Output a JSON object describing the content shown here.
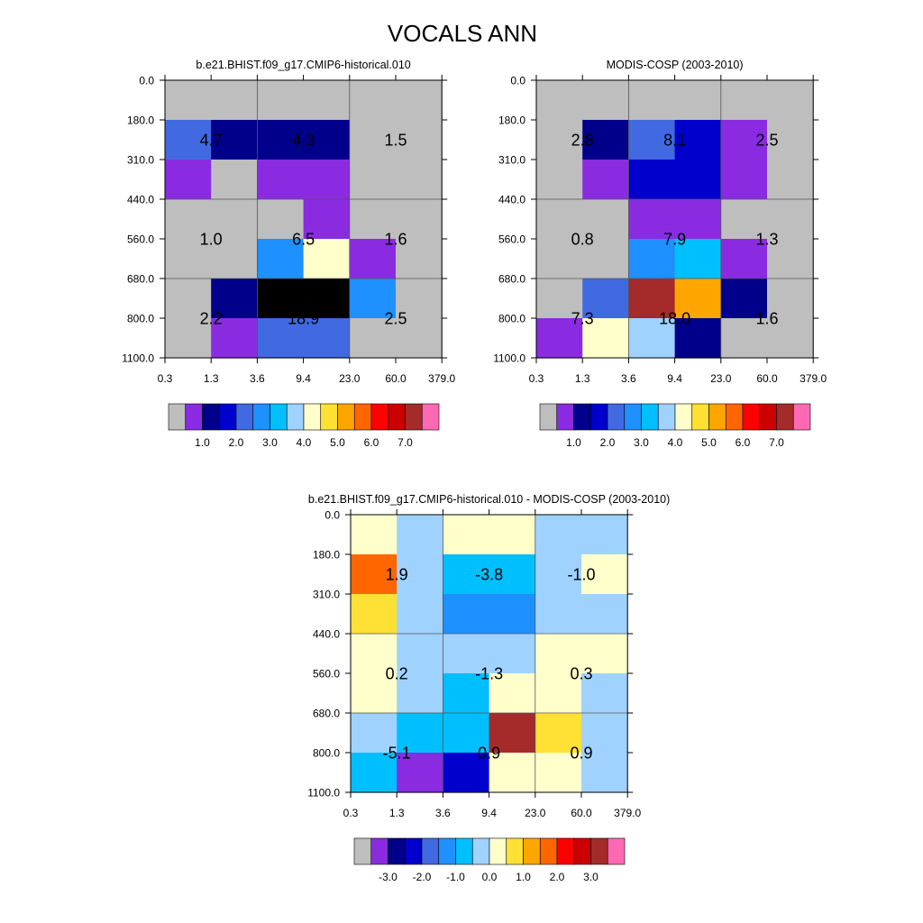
{
  "figure_title": "VOCALS ANN",
  "chart_data": [
    {
      "type": "heatmap",
      "id": "model",
      "title": "b.e21.BHIST.f09_g17.CMIP6-historical.010",
      "x_ticks": [
        "0.3",
        "1.3",
        "3.6",
        "9.4",
        "23.0",
        "60.0",
        "379.0"
      ],
      "y_ticks": [
        "0.0",
        "180.0",
        "310.0",
        "440.0",
        "560.0",
        "680.0",
        "800.0",
        "1100.0"
      ],
      "cells": [
        [
          0,
          0,
          0,
          0,
          0,
          0
        ],
        [
          4,
          2,
          2,
          2,
          0,
          0
        ],
        [
          1,
          0,
          1,
          1,
          0,
          0
        ],
        [
          0,
          0,
          0,
          1,
          0,
          0
        ],
        [
          0,
          0,
          5,
          8,
          1,
          0
        ],
        [
          0,
          2,
          17,
          18,
          5,
          0
        ],
        [
          0,
          1,
          4,
          4,
          0,
          0
        ]
      ],
      "block_labels": [
        {
          "row": 0,
          "col": 0,
          "text": "4.7"
        },
        {
          "row": 0,
          "col": 1,
          "text": "4.3"
        },
        {
          "row": 0,
          "col": 2,
          "text": "1.5"
        },
        {
          "row": 1,
          "col": 0,
          "text": "1.0"
        },
        {
          "row": 1,
          "col": 1,
          "text": "6.5"
        },
        {
          "row": 1,
          "col": 2,
          "text": "1.6"
        },
        {
          "row": 2,
          "col": 0,
          "text": "2.2"
        },
        {
          "row": 2,
          "col": 1,
          "text": "18.9"
        },
        {
          "row": 2,
          "col": 2,
          "text": "2.5"
        }
      ],
      "colorbar": {
        "colors": [
          "#bebebe",
          "#8a2be2",
          "#00008b",
          "#0000cd",
          "#4169e1",
          "#1e90ff",
          "#00bfff",
          "#a0d2ff",
          "#ffffcc",
          "#ffe135",
          "#ffa500",
          "#ff6600",
          "#ff0000",
          "#cc0000",
          "#a52a2a",
          "#ff69b4"
        ],
        "labels": [
          "1.0",
          "2.0",
          "3.0",
          "4.0",
          "5.0",
          "6.0",
          "7.0"
        ]
      }
    },
    {
      "type": "heatmap",
      "id": "obs",
      "title": "MODIS-COSP (2003-2010)",
      "x_ticks": [
        "0.3",
        "1.3",
        "3.6",
        "9.4",
        "23.0",
        "60.0",
        "379.0"
      ],
      "y_ticks": [
        "0.0",
        "180.0",
        "310.0",
        "440.0",
        "560.0",
        "680.0",
        "800.0",
        "1100.0"
      ],
      "cells": [
        [
          0,
          0,
          0,
          0,
          0,
          0
        ],
        [
          0,
          2,
          4,
          3,
          1,
          0
        ],
        [
          0,
          1,
          3,
          3,
          1,
          0
        ],
        [
          0,
          0,
          1,
          1,
          0,
          0
        ],
        [
          0,
          0,
          5,
          6,
          1,
          0
        ],
        [
          0,
          4,
          14,
          10,
          2,
          0
        ],
        [
          1,
          8,
          7,
          2,
          0,
          0
        ]
      ],
      "block_labels": [
        {
          "row": 0,
          "col": 0,
          "text": "2.8"
        },
        {
          "row": 0,
          "col": 1,
          "text": "8.1"
        },
        {
          "row": 0,
          "col": 2,
          "text": "2.5"
        },
        {
          "row": 1,
          "col": 0,
          "text": "0.8"
        },
        {
          "row": 1,
          "col": 1,
          "text": "7.9"
        },
        {
          "row": 1,
          "col": 2,
          "text": "1.3"
        },
        {
          "row": 2,
          "col": 0,
          "text": "7.3"
        },
        {
          "row": 2,
          "col": 1,
          "text": "18.0"
        },
        {
          "row": 2,
          "col": 2,
          "text": "1.6"
        }
      ],
      "colorbar": {
        "colors": [
          "#bebebe",
          "#8a2be2",
          "#00008b",
          "#0000cd",
          "#4169e1",
          "#1e90ff",
          "#00bfff",
          "#a0d2ff",
          "#ffffcc",
          "#ffe135",
          "#ffa500",
          "#ff6600",
          "#ff0000",
          "#cc0000",
          "#a52a2a",
          "#ff69b4"
        ],
        "labels": [
          "1.0",
          "2.0",
          "3.0",
          "4.0",
          "5.0",
          "6.0",
          "7.0"
        ]
      }
    },
    {
      "type": "heatmap",
      "id": "diff",
      "title": "b.e21.BHIST.f09_g17.CMIP6-historical.010 - MODIS-COSP (2003-2010)",
      "x_ticks": [
        "0.3",
        "1.3",
        "3.6",
        "9.4",
        "23.0",
        "60.0",
        "379.0"
      ],
      "y_ticks": [
        "0.0",
        "180.0",
        "310.0",
        "440.0",
        "560.0",
        "680.0",
        "800.0",
        "1100.0"
      ],
      "cells": [
        [
          8,
          7,
          8,
          8,
          7,
          7
        ],
        [
          11,
          7,
          6,
          6,
          7,
          8
        ],
        [
          9,
          7,
          5,
          5,
          7,
          7
        ],
        [
          8,
          7,
          7,
          7,
          8,
          8
        ],
        [
          8,
          7,
          6,
          8,
          8,
          7
        ],
        [
          7,
          6,
          6,
          14,
          9,
          7
        ],
        [
          6,
          1,
          3,
          8,
          8,
          7
        ]
      ],
      "block_labels": [
        {
          "row": 0,
          "col": 0,
          "text": "1.9"
        },
        {
          "row": 0,
          "col": 1,
          "text": "-3.8"
        },
        {
          "row": 0,
          "col": 2,
          "text": "-1.0"
        },
        {
          "row": 1,
          "col": 0,
          "text": "0.2"
        },
        {
          "row": 1,
          "col": 1,
          "text": "-1.3"
        },
        {
          "row": 1,
          "col": 2,
          "text": "0.3"
        },
        {
          "row": 2,
          "col": 0,
          "text": "-5.1"
        },
        {
          "row": 2,
          "col": 1,
          "text": "0.9"
        },
        {
          "row": 2,
          "col": 2,
          "text": "0.9"
        }
      ],
      "colorbar": {
        "colors": [
          "#bebebe",
          "#8a2be2",
          "#00008b",
          "#0000cd",
          "#4169e1",
          "#1e90ff",
          "#00bfff",
          "#a0d2ff",
          "#ffffcc",
          "#ffe135",
          "#ffa500",
          "#ff6600",
          "#ff0000",
          "#cc0000",
          "#a52a2a",
          "#ff69b4"
        ],
        "labels": [
          "-3.0",
          "-2.0",
          "-1.0",
          "0.0",
          "1.0",
          "2.0",
          "3.0"
        ]
      }
    }
  ]
}
